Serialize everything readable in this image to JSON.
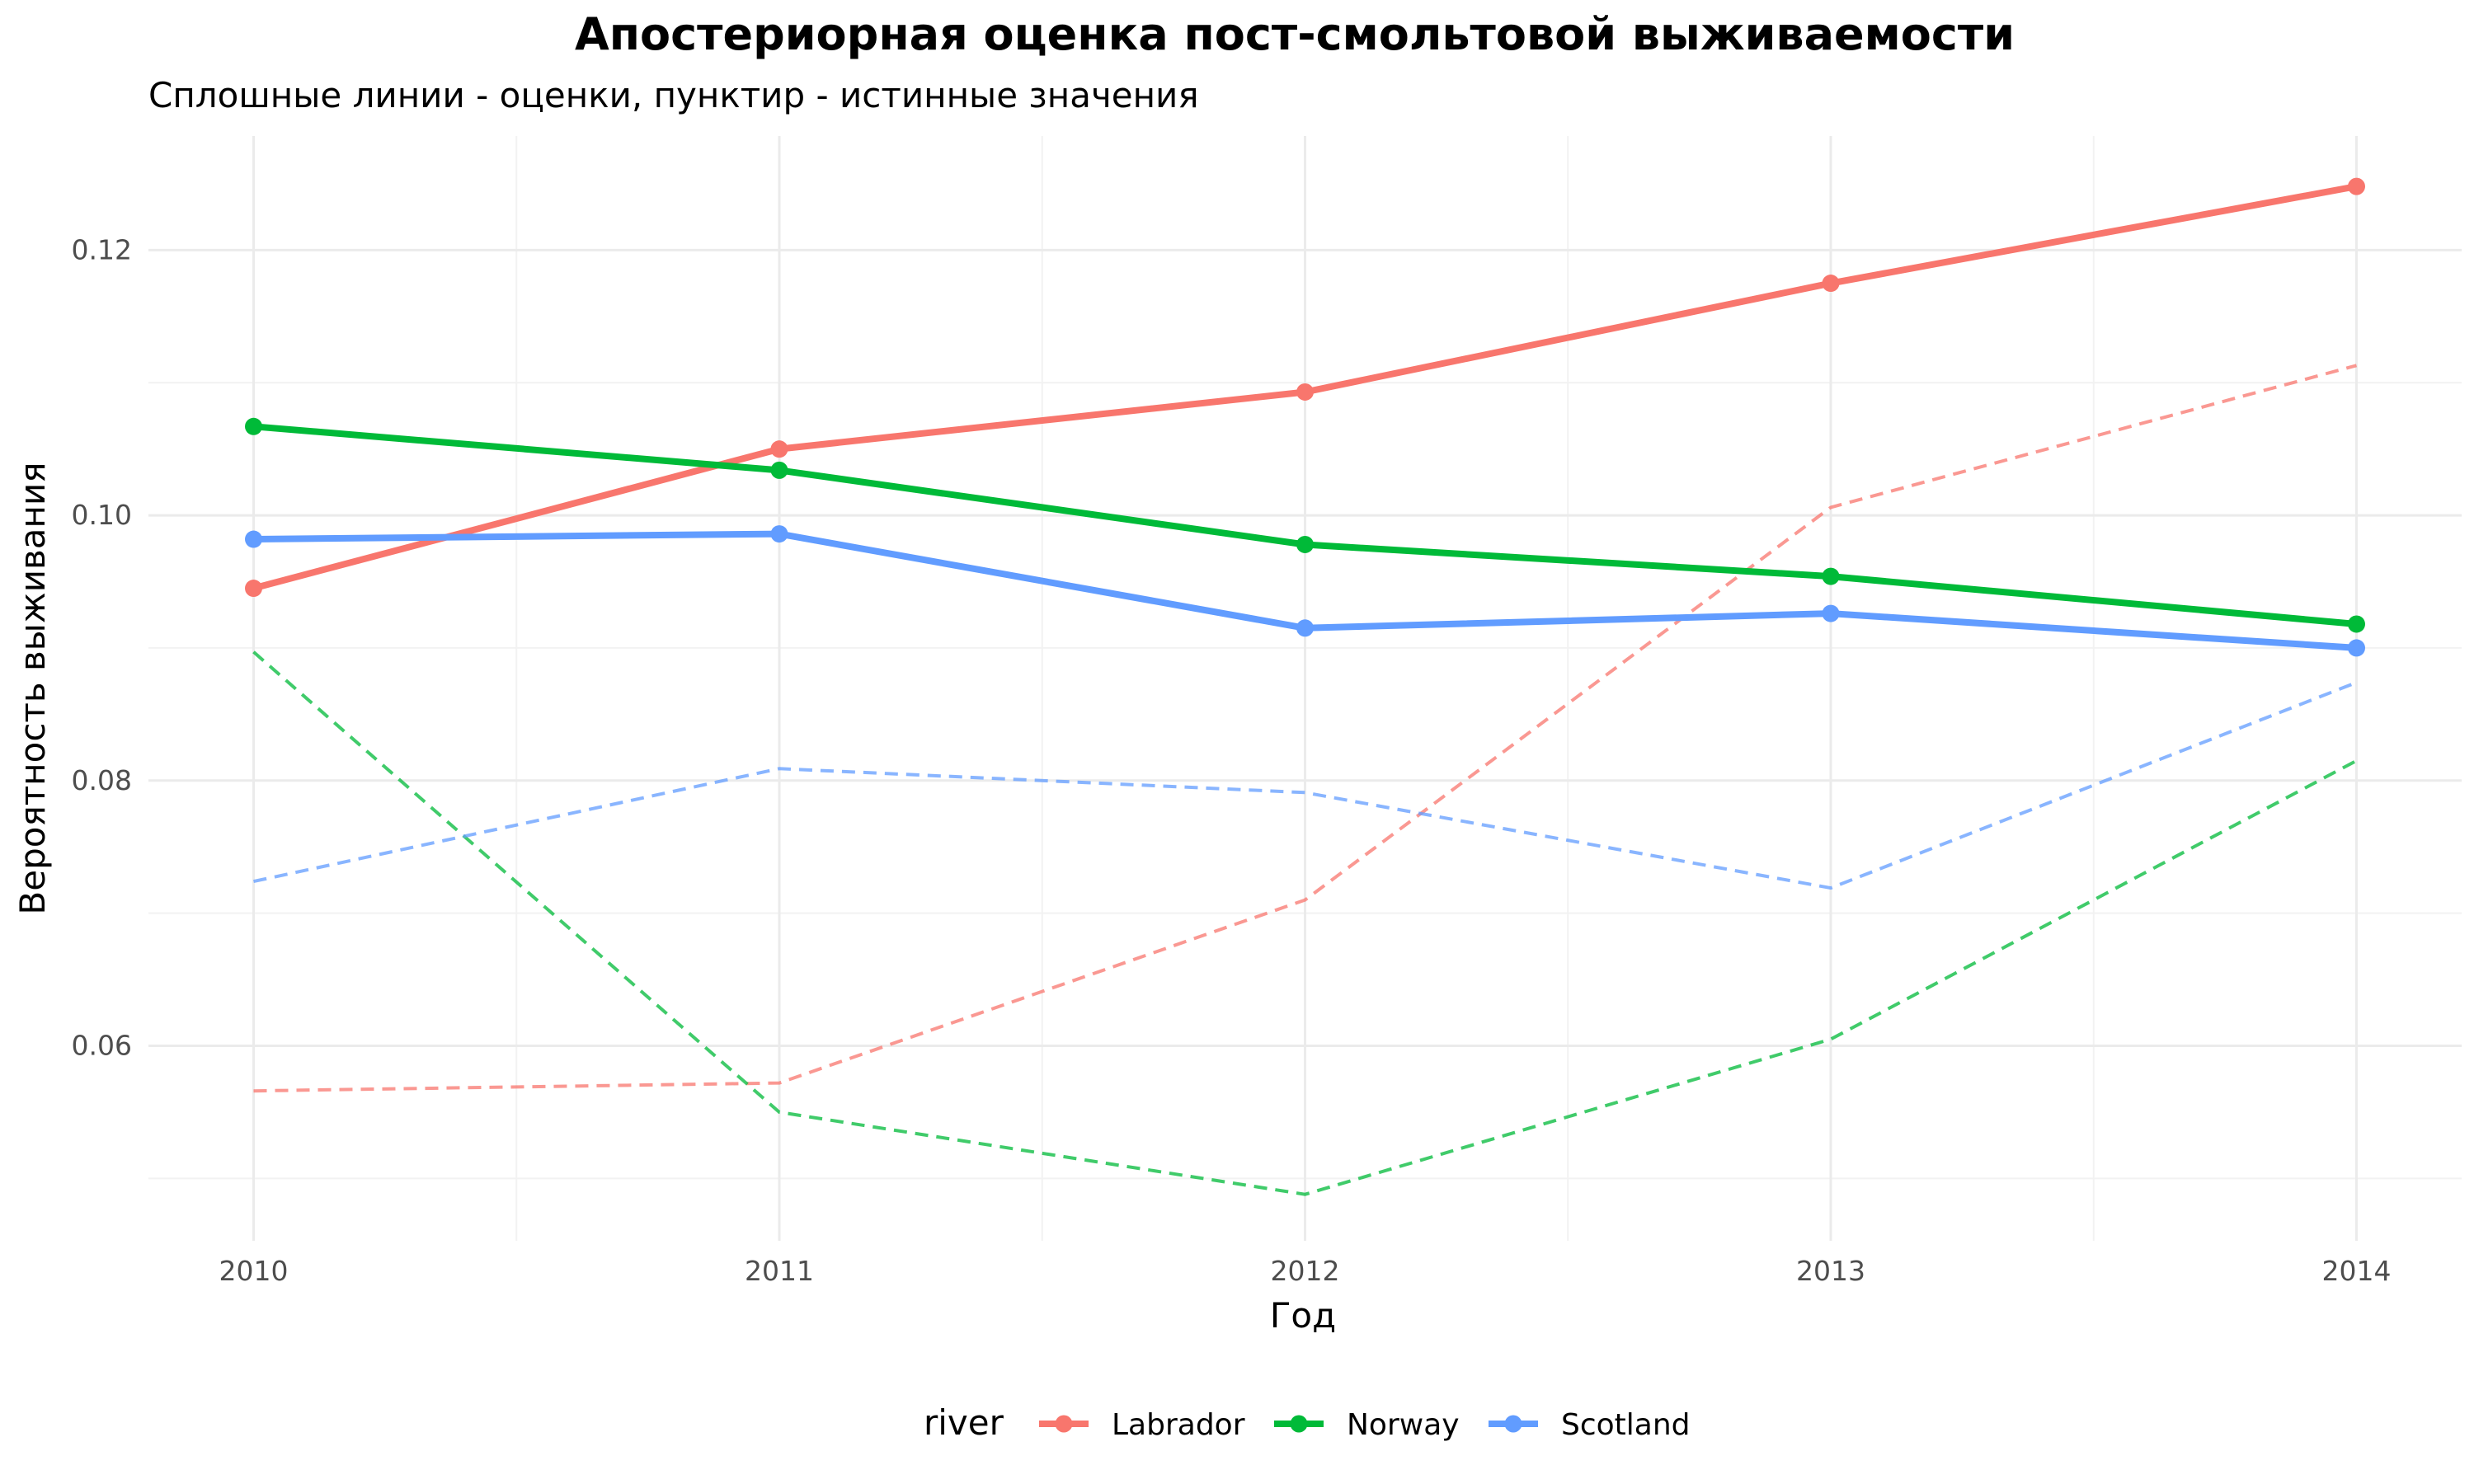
{
  "chart_data": {
    "type": "line",
    "title": "Апостериорная оценка пост-смольтовой выживаемости",
    "subtitle": "Сплошные линии - оценки, пунктир - истинные значения",
    "xlabel": "Год",
    "ylabel": "Вероятность выживания",
    "x": [
      2010,
      2011,
      2012,
      2013,
      2014
    ],
    "x_tick_labels": [
      "2010",
      "2011",
      "2012",
      "2013",
      "2014"
    ],
    "y_ticks": [
      0.06,
      0.08,
      0.1,
      0.12
    ],
    "y_tick_labels": [
      "0.06",
      "0.08",
      "0.10",
      "0.12"
    ],
    "xlim": [
      2009.8,
      2014.2
    ],
    "ylim": [
      0.0453,
      0.1286
    ],
    "grid": true,
    "legend": {
      "title": "river",
      "position": "bottom"
    },
    "series": [
      {
        "name": "Labrador",
        "color": "#F8766D",
        "estimate": [
          0.0945,
          0.105,
          0.1093,
          0.1175,
          0.1248
        ],
        "true": [
          0.0566,
          0.0572,
          0.071,
          0.1006,
          0.1113
        ]
      },
      {
        "name": "Norway",
        "color": "#00BA38",
        "estimate": [
          0.1067,
          0.1034,
          0.0978,
          0.0954,
          0.0918
        ],
        "true": [
          0.0897,
          0.055,
          0.0488,
          0.0605,
          0.0815
        ]
      },
      {
        "name": "Scotland",
        "color": "#619CFF",
        "estimate": [
          0.0982,
          0.0986,
          0.0915,
          0.0926,
          0.09
        ],
        "true": [
          0.0724,
          0.0809,
          0.0791,
          0.0719,
          0.0874
        ]
      }
    ]
  }
}
